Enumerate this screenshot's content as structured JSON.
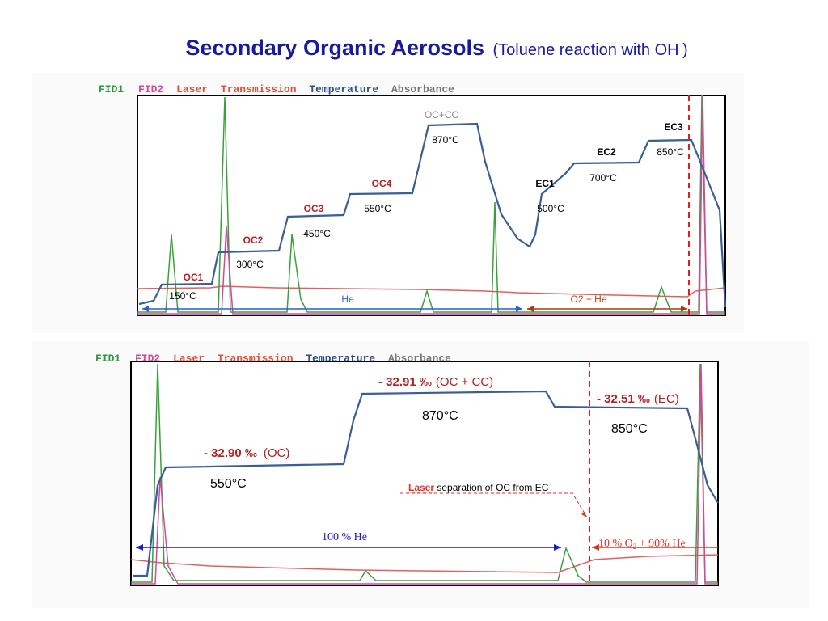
{
  "header": {
    "title": "Secondary Organic Aerosols",
    "subtitle": "(Toluene reaction with OH",
    "superscript": "-",
    "close": ")"
  },
  "top_panel": {
    "legend": [
      "FID1",
      "FID2",
      "Laser",
      "Transmission",
      "Temperature",
      "Absorbance"
    ],
    "steps": [
      {
        "name": "OC1",
        "temp": "150°C"
      },
      {
        "name": "OC2",
        "temp": "300°C"
      },
      {
        "name": "OC3",
        "temp": "450°C"
      },
      {
        "name": "OC4",
        "temp": "550°C"
      },
      {
        "name": "OC+CC",
        "temp": "870°C"
      },
      {
        "name": "EC1",
        "temp": "500°C"
      },
      {
        "name": "EC2",
        "temp": "700°C"
      },
      {
        "name": "EC3",
        "temp": "850°C"
      }
    ],
    "carrier_1": "He",
    "carrier_2": "O2 + He"
  },
  "bottom_panel": {
    "legend": [
      "FID1",
      "FID2",
      "Laser",
      "Transmission",
      "Temperature",
      "Absorbance"
    ],
    "oc": {
      "delta": "- 32.90 ‰",
      "label": "(OC)",
      "temp": "550°C"
    },
    "occc": {
      "delta": "- 32.91 ‰",
      "label": "(OC + CC)",
      "temp": "870°C"
    },
    "ec": {
      "delta": "- 32.51 ‰",
      "label": "(EC)",
      "temp": "850°C"
    },
    "laser_note": {
      "word": "Laser",
      "rest": " separation of OC from EC"
    },
    "carrier_1": "100 % He",
    "carrier_2": {
      "a": "10 % O",
      "sub": "2",
      "b": " + 90% He"
    }
  }
}
